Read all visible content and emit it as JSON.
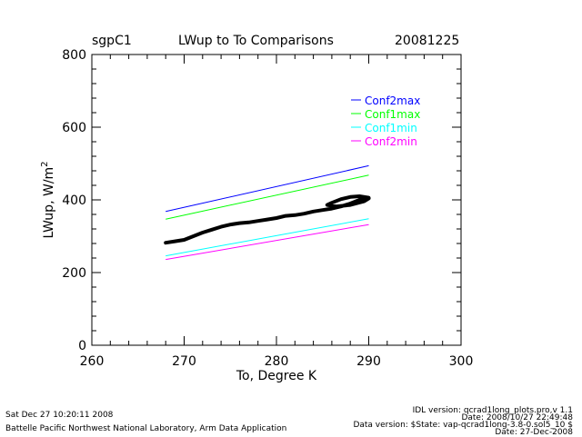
{
  "header": {
    "site": "sgpC1",
    "title": "LWup to To Comparisons",
    "date": "20081225"
  },
  "chart_data": {
    "type": "line",
    "title": "LWup to To Comparisons",
    "xlabel": "To, Degree K",
    "ylabel": "LWup, W/m",
    "ylabel_superscript": "2",
    "xlim": [
      260,
      300
    ],
    "ylim": [
      0,
      800
    ],
    "xticks": [
      260,
      270,
      280,
      290,
      300
    ],
    "yticks": [
      0,
      200,
      400,
      600,
      800
    ],
    "grid": false,
    "legend_position": "top-right",
    "series": [
      {
        "name": "Conf2max",
        "color": "#0000ff",
        "x": [
          268,
          290
        ],
        "y": [
          368,
          494
        ]
      },
      {
        "name": "Conf1max",
        "color": "#00ff00",
        "x": [
          268,
          290
        ],
        "y": [
          347,
          468
        ]
      },
      {
        "name": "Conf1min",
        "color": "#00ffff",
        "x": [
          268,
          290
        ],
        "y": [
          246,
          348
        ]
      },
      {
        "name": "Conf2min",
        "color": "#ff00ff",
        "x": [
          268,
          290
        ],
        "y": [
          236,
          332
        ]
      }
    ],
    "observed": {
      "color": "#000000",
      "x": [
        268.0,
        269.0,
        270.0,
        271.0,
        272.0,
        273.0,
        274.0,
        275.0,
        276.0,
        277.0,
        278.0,
        279.0,
        280.0,
        281.0,
        282.0,
        283.0,
        284.0,
        285.0,
        286.0,
        287.0,
        288.0,
        289.0,
        290.0,
        289.0,
        288.0,
        287.0,
        286.0,
        285.5,
        286.5,
        288.0,
        289.5,
        290.0
      ],
      "y": [
        282,
        286,
        290,
        300,
        310,
        318,
        326,
        332,
        336,
        338,
        342,
        346,
        350,
        356,
        358,
        362,
        368,
        372,
        376,
        382,
        390,
        400,
        406,
        410,
        408,
        402,
        392,
        386,
        382,
        386,
        396,
        404
      ]
    }
  },
  "footer": {
    "timestamp": "Sat Dec 27 10:20:11 2008",
    "organization": "Battelle Pacific Northwest National Laboratory, Arm Data Application",
    "idl_version": "IDL version: qcrad1long_plots.pro,v 1.1",
    "file_date": "Date: 2008/10/27 22:49:48",
    "data_version": "Data version: $State: vap-qcrad1long-3.8-0.sol5_10 $",
    "data_date": "Date: 27-Dec-2008"
  }
}
